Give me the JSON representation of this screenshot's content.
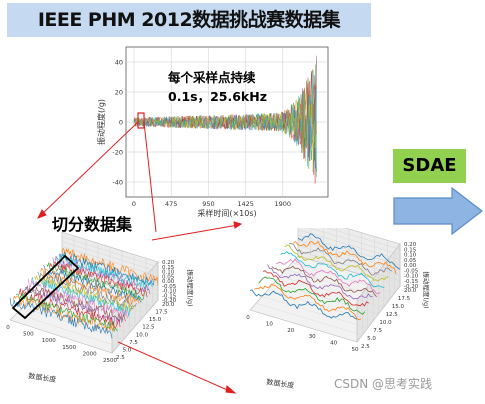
{
  "title": "IEEE PHM 2012数据挑战赛数据集",
  "annotation": {
    "line1": "每个采样点持续",
    "line2": "0.1s，25.6kHz"
  },
  "segment_label": "切分数据集",
  "sdae_label": "SDAE",
  "watermark": "CSDN @思考实践",
  "colors": {
    "title_bg": "#c5d9f1",
    "sdae_bg": "#92d050",
    "arrow_fill": "#8eb4e3",
    "arrow_stroke": "#5b8cc8",
    "red_lines": "#e02020"
  },
  "main_chart": {
    "type": "line",
    "ylabel": "振动程度(/g)",
    "xlabel": "采样时间(×10s)",
    "xticks": [
      "0",
      "475",
      "950",
      "1425",
      "1900"
    ],
    "yticks": [
      "40",
      "20",
      "0",
      "-20",
      "-40"
    ]
  },
  "plot_left": {
    "xlabel": "数据长度",
    "ylabel": "振动程度(/g)",
    "xticks": [
      "0",
      "500",
      "1000",
      "1500",
      "2000",
      "2500"
    ],
    "zticks": [
      "0.20",
      "0.15",
      "0.10",
      "0.05",
      "0.00",
      "-0.05",
      "-0.10",
      "-0.15",
      "-0.20"
    ],
    "depth_ticks": [
      "20.0",
      "17.5",
      "15.0",
      "12.5",
      "10.0",
      "7.5",
      "5.0",
      "2.5"
    ]
  },
  "plot_right": {
    "xlabel": "数据长度",
    "ylabel": "振动程度(/g)",
    "xticks": [
      "0",
      "10",
      "20",
      "30",
      "40",
      "50"
    ],
    "zticks": [
      "0.20",
      "0.15",
      "0.10",
      "0.05",
      "0.00",
      "-0.05",
      "-0.10",
      "-0.15",
      "-0.20"
    ],
    "depth_ticks": [
      "20.0",
      "17.5",
      "15.0",
      "12.5",
      "10.0",
      "7.5",
      "5.0",
      "2.5"
    ]
  }
}
